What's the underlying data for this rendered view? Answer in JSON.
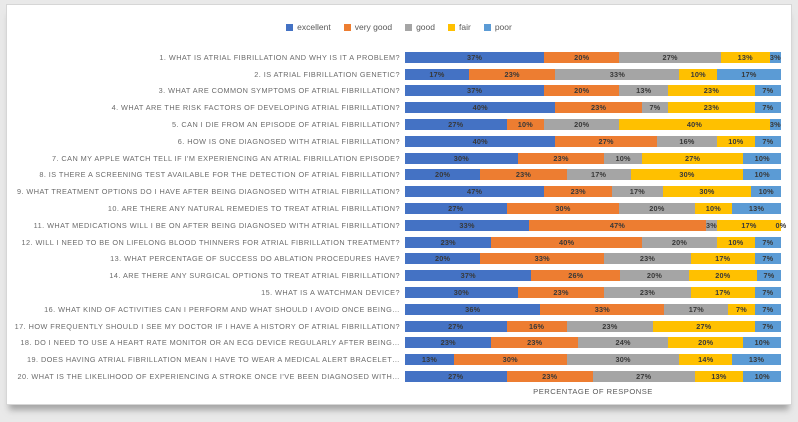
{
  "page": {
    "background_color": "#e9e9e9",
    "card_color": "#ffffff"
  },
  "chart_data": {
    "type": "bar",
    "orientation": "horizontal",
    "stacked": true,
    "normalized_to_100_percent": true,
    "legend_position": "top",
    "grid": false,
    "xlabel": "PERCENTAGE OF RESPONSE",
    "data_label_suffix": "%",
    "categories": [
      "1. WHAT IS ATRIAL FIBRILLATION AND WHY IS IT A PROBLEM?",
      "2. IS ATRIAL FIBRILLATION GENETIC?",
      "3. WHAT ARE COMMON SYMPTOMS OF ATRIAL FIBRILLATION?",
      "4. WHAT ARE THE RISK FACTORS OF DEVELOPING ATRIAL FIBRILLATION?",
      "5. CAN I DIE FROM AN EPISODE OF ATRIAL FIBRILLATION?",
      "6. HOW IS ONE DIAGNOSED WITH ATRIAL FIBRILLATION?",
      "7. CAN MY APPLE WATCH TELL IF I'M EXPERIENCING AN ATRIAL FIBRILLATION EPISODE?",
      "8. IS THERE A SCREENING TEST AVAILABLE FOR THE DETECTION OF ATRIAL FIBRILLATION?",
      "9. WHAT TREATMENT OPTIONS DO I HAVE AFTER BEING DIAGNOSED WITH ATRIAL FIBRILLATION?",
      "10. ARE THERE ANY NATURAL REMEDIES TO TREAT ATRIAL FIBRILLATION?",
      "11. WHAT MEDICATIONS WILL I BE ON AFTER BEING DIAGNOSED WITH ATRIAL FIBRILLATION?",
      "12. WILL I NEED TO BE ON LIFELONG BLOOD THINNERS FOR ATRIAL FIBRILLATION TREATMENT?",
      "13. WHAT PERCENTAGE OF SUCCESS DO ABLATION PROCEDURES HAVE?",
      "14. ARE THERE ANY SURGICAL OPTIONS TO TREAT ATRIAL FIBRILLATION?",
      "15. WHAT IS A WATCHMAN DEVICE?",
      "16. WHAT KIND OF ACTIVITIES CAN I PERFORM AND WHAT SHOULD I AVOID ONCE BEING…",
      "17. HOW FREQUENTLY SHOULD I SEE MY DOCTOR IF I HAVE A HISTORY OF ATRIAL FIBRILLATION?",
      "18. DO I NEED TO USE A HEART RATE MONITOR OR AN ECG DEVICE REGULARLY AFTER BEING…",
      "19. DOES HAVING ATRIAL FIBRILLATION MEAN I HAVE TO WEAR A MEDICAL ALERT BRACELET…",
      "20. WHAT IS THE LIKELIHOOD OF EXPERIENCING A STROKE ONCE I'VE BEEN DIAGNOSED WITH…"
    ],
    "series": [
      {
        "name": "excellent",
        "color": "#4472C4",
        "values": [
          37,
          17,
          37,
          40,
          27,
          40,
          30,
          20,
          47,
          27,
          33,
          23,
          20,
          37,
          30,
          36,
          27,
          23,
          13,
          27
        ]
      },
      {
        "name": "very good",
        "color": "#ED7D31",
        "values": [
          20,
          23,
          20,
          23,
          10,
          27,
          23,
          23,
          23,
          30,
          47,
          40,
          33,
          26,
          23,
          33,
          16,
          23,
          30,
          23
        ]
      },
      {
        "name": "good",
        "color": "#A5A5A5",
        "values": [
          27,
          33,
          13,
          7,
          20,
          16,
          10,
          17,
          17,
          20,
          3,
          20,
          23,
          20,
          23,
          17,
          23,
          24,
          30,
          27
        ]
      },
      {
        "name": "fair",
        "color": "#FFC000",
        "values": [
          13,
          10,
          23,
          23,
          40,
          10,
          27,
          30,
          30,
          10,
          17,
          10,
          17,
          20,
          17,
          7,
          27,
          20,
          14,
          13
        ]
      },
      {
        "name": "poor",
        "color": "#5B9BD5",
        "values": [
          3,
          17,
          7,
          7,
          3,
          7,
          10,
          10,
          10,
          13,
          0,
          7,
          7,
          7,
          7,
          7,
          7,
          10,
          13,
          10
        ]
      }
    ]
  }
}
